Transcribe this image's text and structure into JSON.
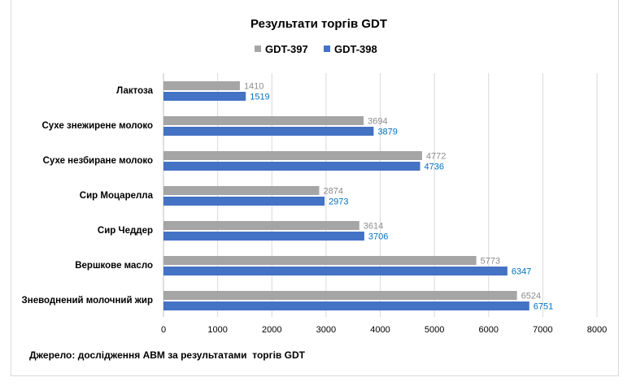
{
  "chart_data": {
    "type": "bar",
    "orientation": "horizontal",
    "title": "Результати торгів GDT",
    "categories": [
      "Лактоза",
      "Сухе знежирене молоко",
      "Сухе незбиране молоко",
      "Сир Моцарелла",
      "Сир Чеддер",
      "Вершкове масло",
      "Зневоднений молочний  жир"
    ],
    "series": [
      {
        "name": "GDT-397",
        "color": "#a5a5a5",
        "label_color": "#8c8c8c",
        "values": [
          1410,
          3694,
          4772,
          2874,
          3614,
          5773,
          6524
        ]
      },
      {
        "name": "GDT-398",
        "color": "#4472c4",
        "label_color": "#0070c0",
        "values": [
          1519,
          3879,
          4736,
          2973,
          3706,
          6347,
          6751
        ]
      }
    ],
    "xlim": [
      0,
      8000
    ],
    "xticks": [
      0,
      1000,
      2000,
      3000,
      4000,
      5000,
      6000,
      7000,
      8000
    ],
    "grid": true,
    "legend": "top",
    "source": "Джерело: дослідження АВМ за результатами  торгів GDT"
  }
}
